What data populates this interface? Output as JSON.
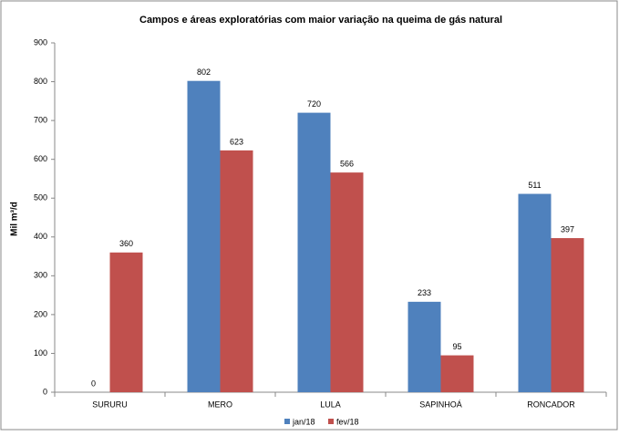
{
  "chart_data": {
    "type": "bar",
    "title": "Campos e áreas exploratórias com maior variação na queima de gás natural",
    "y_label": "Mil m³/d",
    "categories": [
      "SURURU",
      "MERO",
      "LULA",
      "SAPINHOÁ",
      "RONCADOR"
    ],
    "series": [
      {
        "name": "jan/18",
        "color": "#4f81bd",
        "values": [
          0,
          802,
          720,
          233,
          511
        ]
      },
      {
        "name": "fev/18",
        "color": "#c0504d",
        "values": [
          360,
          623,
          566,
          95,
          397
        ]
      }
    ],
    "ylim": [
      0,
      900
    ],
    "yticks": [
      0,
      100,
      200,
      300,
      400,
      500,
      600,
      700,
      800,
      900
    ],
    "grid": false,
    "legend": "bottom"
  }
}
